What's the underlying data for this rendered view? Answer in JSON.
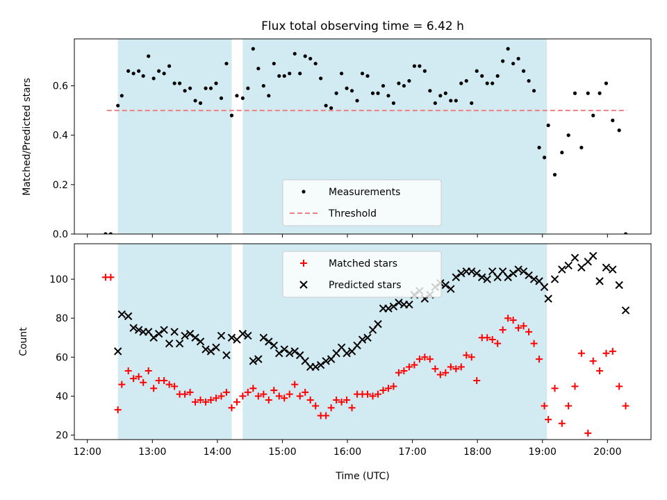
{
  "chart_data": [
    {
      "type": "scatter",
      "title": "Flux total observing time = 6.42 h",
      "ylabel": "Matched/Predicted stars",
      "xlabel": "",
      "xlim": [
        11.8,
        20.67
      ],
      "ylim": [
        0,
        0.79
      ],
      "yticks": [
        0.0,
        0.2,
        0.4,
        0.6
      ],
      "ytick_labels": [
        "0.0",
        "0.2",
        "0.4",
        "0.6"
      ],
      "shaded_intervals": [
        [
          12.47,
          14.22
        ],
        [
          14.39,
          19.07
        ]
      ],
      "shade_color": "#add8e6",
      "threshold": {
        "name": "Threshold",
        "value": 0.5,
        "x_range": [
          12.3,
          20.3
        ],
        "color": "#f08080",
        "style": "dashed"
      },
      "legend": {
        "placement": "lower-center",
        "entries": [
          "Measurements",
          "Threshold"
        ]
      },
      "series": [
        {
          "name": "Measurements",
          "marker": "dot",
          "color": "#000000",
          "x": [
            12.28,
            12.36,
            12.47,
            12.53,
            12.63,
            12.71,
            12.79,
            12.86,
            12.94,
            13.02,
            13.1,
            13.18,
            13.26,
            13.34,
            13.42,
            13.5,
            13.58,
            13.66,
            13.74,
            13.82,
            13.9,
            13.98,
            14.06,
            14.14,
            14.22,
            14.3,
            14.39,
            14.47,
            14.55,
            14.63,
            14.71,
            14.79,
            14.87,
            14.95,
            15.03,
            15.11,
            15.19,
            15.27,
            15.35,
            15.43,
            15.51,
            15.59,
            15.67,
            15.75,
            15.83,
            15.91,
            15.99,
            16.07,
            16.15,
            16.23,
            16.31,
            16.39,
            16.47,
            16.55,
            16.63,
            16.71,
            16.79,
            16.87,
            16.95,
            17.03,
            17.11,
            17.19,
            17.27,
            17.35,
            17.43,
            17.51,
            17.59,
            17.67,
            17.75,
            17.83,
            17.91,
            17.99,
            18.07,
            18.15,
            18.23,
            18.31,
            18.39,
            18.47,
            18.55,
            18.63,
            18.71,
            18.79,
            18.87,
            18.95,
            19.03,
            19.09,
            19.19,
            19.3,
            19.4,
            19.5,
            19.6,
            19.7,
            19.78,
            19.88,
            19.98,
            20.08,
            20.18,
            20.28
          ],
          "y": [
            0.0,
            0.0,
            0.52,
            0.56,
            0.66,
            0.65,
            0.66,
            0.64,
            0.72,
            0.63,
            0.66,
            0.65,
            0.68,
            0.61,
            0.61,
            0.58,
            0.59,
            0.54,
            0.53,
            0.59,
            0.59,
            0.61,
            0.55,
            0.69,
            0.48,
            0.56,
            0.55,
            0.59,
            0.75,
            0.67,
            0.6,
            0.56,
            0.69,
            0.64,
            0.64,
            0.65,
            0.73,
            0.65,
            0.72,
            0.71,
            0.69,
            0.63,
            0.52,
            0.51,
            0.57,
            0.65,
            0.59,
            0.58,
            0.54,
            0.65,
            0.64,
            0.57,
            0.57,
            0.6,
            0.56,
            0.53,
            0.61,
            0.6,
            0.62,
            0.68,
            0.68,
            0.66,
            0.58,
            0.53,
            0.56,
            0.57,
            0.54,
            0.54,
            0.61,
            0.62,
            0.53,
            0.66,
            0.64,
            0.61,
            0.61,
            0.64,
            0.7,
            0.75,
            0.69,
            0.71,
            0.66,
            0.62,
            0.58,
            0.35,
            0.31,
            0.44,
            0.24,
            0.33,
            0.4,
            0.57,
            0.35,
            0.57,
            0.48,
            0.57,
            0.61,
            0.46,
            0.42,
            0.0
          ]
        }
      ]
    },
    {
      "type": "scatter",
      "title": "",
      "xlabel": "Time (UTC)",
      "ylabel": "Count",
      "xlim": [
        11.8,
        20.67
      ],
      "ylim": [
        17.7,
        118.2
      ],
      "xticks": [
        12,
        13,
        14,
        15,
        16,
        17,
        18,
        19,
        20
      ],
      "xtick_labels": [
        "12:00",
        "13:00",
        "14:00",
        "15:00",
        "16:00",
        "17:00",
        "18:00",
        "19:00",
        "20:00"
      ],
      "yticks": [
        20,
        40,
        60,
        80,
        100
      ],
      "ytick_labels": [
        "20",
        "40",
        "60",
        "80",
        "100"
      ],
      "shaded_intervals": [
        [
          12.47,
          14.22
        ],
        [
          14.39,
          19.07
        ]
      ],
      "shade_color": "#add8e6",
      "legend": {
        "placement": "upper-center",
        "entries": [
          "Matched stars",
          "Predicted stars"
        ]
      },
      "series": [
        {
          "name": "Matched stars",
          "marker": "plus",
          "color": "#ff0000",
          "x": [
            12.28,
            12.36,
            12.47,
            12.53,
            12.63,
            12.71,
            12.79,
            12.86,
            12.94,
            13.02,
            13.1,
            13.18,
            13.26,
            13.34,
            13.42,
            13.5,
            13.58,
            13.66,
            13.74,
            13.82,
            13.9,
            13.98,
            14.06,
            14.14,
            14.22,
            14.3,
            14.39,
            14.47,
            14.55,
            14.63,
            14.71,
            14.79,
            14.87,
            14.95,
            15.03,
            15.11,
            15.19,
            15.27,
            15.35,
            15.43,
            15.51,
            15.59,
            15.67,
            15.75,
            15.83,
            15.91,
            15.99,
            16.07,
            16.15,
            16.23,
            16.31,
            16.39,
            16.47,
            16.55,
            16.63,
            16.71,
            16.79,
            16.87,
            16.95,
            17.03,
            17.11,
            17.19,
            17.27,
            17.35,
            17.43,
            17.51,
            17.59,
            17.67,
            17.75,
            17.83,
            17.91,
            17.99,
            18.07,
            18.15,
            18.23,
            18.31,
            18.39,
            18.47,
            18.55,
            18.63,
            18.71,
            18.79,
            18.87,
            18.95,
            19.03,
            19.09,
            19.19,
            19.3,
            19.4,
            19.5,
            19.6,
            19.7,
            19.78,
            19.88,
            19.98,
            20.08,
            20.18,
            20.28
          ],
          "y": [
            101,
            101,
            33,
            46,
            53,
            49,
            50,
            47,
            53,
            44,
            48,
            48,
            46,
            45,
            41,
            41,
            42,
            37,
            38,
            37,
            38,
            39,
            40,
            42,
            34,
            37,
            40,
            42,
            44,
            40,
            41,
            38,
            43,
            40,
            39,
            41,
            46,
            40,
            42,
            38,
            35,
            30,
            30,
            34,
            38,
            37,
            38,
            34,
            41,
            41,
            41,
            40,
            41,
            43,
            44,
            45,
            52,
            53,
            55,
            56,
            59,
            60,
            59,
            54,
            51,
            52,
            55,
            54,
            55,
            61,
            60,
            48,
            70,
            70,
            69,
            67,
            74,
            80,
            79,
            75,
            76,
            73,
            67,
            59,
            35,
            28,
            44,
            26,
            35,
            45,
            62,
            21,
            58,
            53,
            62,
            63,
            45,
            35
          ]
        },
        {
          "name": "Predicted stars",
          "marker": "x",
          "color": "#000000",
          "x": [
            12.47,
            12.53,
            12.63,
            12.71,
            12.79,
            12.86,
            12.94,
            13.02,
            13.1,
            13.18,
            13.26,
            13.34,
            13.42,
            13.5,
            13.58,
            13.66,
            13.74,
            13.82,
            13.9,
            13.98,
            14.06,
            14.14,
            14.22,
            14.3,
            14.39,
            14.47,
            14.55,
            14.63,
            14.71,
            14.79,
            14.87,
            14.95,
            15.03,
            15.11,
            15.19,
            15.27,
            15.35,
            15.43,
            15.51,
            15.59,
            15.67,
            15.75,
            15.83,
            15.91,
            15.99,
            16.07,
            16.15,
            16.23,
            16.31,
            16.39,
            16.47,
            16.55,
            16.63,
            16.71,
            16.79,
            16.87,
            16.95,
            17.03,
            17.11,
            17.19,
            17.27,
            17.35,
            17.43,
            17.51,
            17.59,
            17.67,
            17.75,
            17.83,
            17.91,
            17.99,
            18.07,
            18.15,
            18.23,
            18.31,
            18.39,
            18.47,
            18.55,
            18.63,
            18.71,
            18.79,
            18.87,
            18.95,
            19.03,
            19.09,
            19.19,
            19.3,
            19.4,
            19.5,
            19.6,
            19.7,
            19.78,
            19.88,
            19.98,
            20.08,
            20.18,
            20.28
          ],
          "y": [
            63,
            82,
            81,
            75,
            74,
            73,
            73,
            70,
            72,
            74,
            67,
            73,
            67,
            71,
            72,
            70,
            68,
            64,
            63,
            65,
            71,
            61,
            70,
            69,
            72,
            71,
            58,
            59,
            70,
            68,
            66,
            62,
            64,
            62,
            63,
            61,
            58,
            55,
            55,
            56,
            58,
            59,
            62,
            65,
            62,
            63,
            66,
            69,
            70,
            74,
            77,
            85,
            85,
            86,
            88,
            87,
            87,
            92,
            94,
            90,
            92,
            96,
            98,
            97,
            95,
            101,
            103,
            104,
            104,
            103,
            101,
            100,
            104,
            101,
            104,
            101,
            103,
            105,
            104,
            102,
            100,
            99,
            96,
            90,
            100,
            105,
            107,
            111,
            106,
            109,
            112,
            99,
            106,
            105,
            97,
            84
          ]
        }
      ]
    }
  ]
}
